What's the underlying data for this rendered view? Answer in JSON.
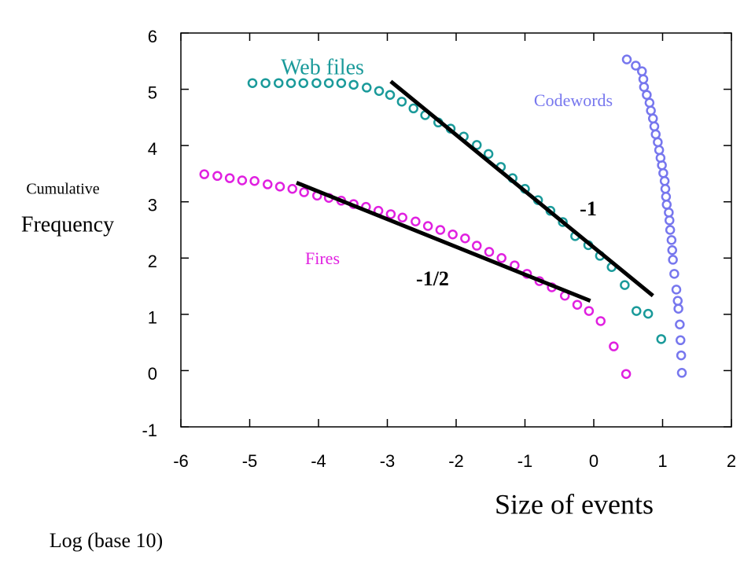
{
  "chart_data": {
    "type": "scatter",
    "xlabel": "Size of events",
    "ylabel_small": "Cumulative",
    "ylabel": "Frequency",
    "note": "Log (base 10)",
    "xlim": [
      -6,
      2
    ],
    "ylim": [
      -1,
      6
    ],
    "xticks": [
      -6,
      -5,
      -4,
      -3,
      -2,
      -1,
      0,
      1,
      2
    ],
    "yticks": [
      -1,
      0,
      1,
      2,
      3,
      4,
      5,
      6
    ],
    "series": [
      {
        "name": "Web files",
        "color": "#1a9a9a",
        "x": [
          -4.96,
          -4.77,
          -4.58,
          -4.4,
          -4.22,
          -4.03,
          -3.85,
          -3.67,
          -3.49,
          -3.3,
          -3.12,
          -2.96,
          -2.79,
          -2.62,
          -2.45,
          -2.26,
          -2.08,
          -1.89,
          -1.7,
          -1.53,
          -1.35,
          -1.18,
          -1.0,
          -0.81,
          -0.63,
          -0.45,
          -0.27,
          -0.08,
          0.09,
          0.26,
          0.45,
          0.62,
          0.79,
          0.98
        ],
        "values": [
          5.11,
          5.11,
          5.11,
          5.11,
          5.11,
          5.11,
          5.11,
          5.11,
          5.08,
          5.03,
          4.97,
          4.9,
          4.78,
          4.66,
          4.54,
          4.41,
          4.3,
          4.16,
          4.01,
          3.85,
          3.62,
          3.42,
          3.23,
          3.03,
          2.84,
          2.64,
          2.39,
          2.23,
          2.04,
          1.84,
          1.52,
          1.06,
          1.01,
          0.56
        ]
      },
      {
        "name": "Fires",
        "color": "#e020e0",
        "x": [
          -5.66,
          -5.47,
          -5.29,
          -5.11,
          -4.93,
          -4.74,
          -4.56,
          -4.38,
          -4.21,
          -4.02,
          -3.85,
          -3.67,
          -3.49,
          -3.31,
          -3.13,
          -2.95,
          -2.78,
          -2.59,
          -2.41,
          -2.23,
          -2.05,
          -1.87,
          -1.7,
          -1.52,
          -1.34,
          -1.15,
          -0.97,
          -0.79,
          -0.61,
          -0.42,
          -0.24,
          -0.07,
          0.1,
          0.29,
          0.47
        ],
        "values": [
          3.49,
          3.46,
          3.42,
          3.38,
          3.37,
          3.31,
          3.27,
          3.23,
          3.17,
          3.11,
          3.07,
          3.02,
          2.96,
          2.91,
          2.84,
          2.78,
          2.72,
          2.65,
          2.57,
          2.5,
          2.42,
          2.35,
          2.22,
          2.11,
          2.0,
          1.87,
          1.72,
          1.59,
          1.48,
          1.33,
          1.17,
          1.06,
          0.88,
          0.43,
          -0.06
        ]
      },
      {
        "name": "Codewords",
        "color": "#7777ee",
        "x": [
          0.48,
          0.61,
          0.7,
          0.72,
          0.73,
          0.77,
          0.81,
          0.83,
          0.86,
          0.88,
          0.9,
          0.93,
          0.95,
          0.97,
          0.99,
          1.01,
          1.03,
          1.04,
          1.05,
          1.06,
          1.09,
          1.1,
          1.11,
          1.13,
          1.14,
          1.15,
          1.17,
          1.2,
          1.22,
          1.23,
          1.25,
          1.26,
          1.27,
          1.28
        ],
        "values": [
          5.53,
          5.42,
          5.32,
          5.18,
          5.04,
          4.9,
          4.76,
          4.62,
          4.48,
          4.34,
          4.2,
          4.06,
          3.92,
          3.78,
          3.65,
          3.51,
          3.37,
          3.23,
          3.09,
          2.95,
          2.81,
          2.67,
          2.5,
          2.32,
          2.14,
          1.97,
          1.72,
          1.44,
          1.24,
          1.1,
          0.82,
          0.54,
          0.27,
          -0.04
        ]
      }
    ],
    "fit_lines": [
      {
        "label": "-1",
        "x": [
          -2.95,
          0.86
        ],
        "y": [
          5.14,
          1.33
        ]
      },
      {
        "label": "-1/2",
        "x": [
          -4.32,
          -0.05
        ],
        "y": [
          3.34,
          1.24
        ]
      }
    ]
  }
}
